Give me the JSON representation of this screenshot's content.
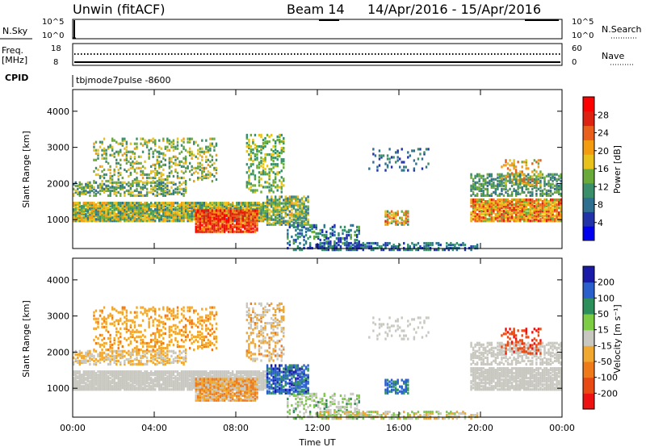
{
  "header": {
    "station": "Unwin (fitACF)",
    "beam": "Beam 14",
    "dates": "14/Apr/2016 - 15/Apr/2016"
  },
  "nsky_panel": {
    "label": "N.Sky",
    "left_ticks": [
      "10^5",
      "10^0"
    ],
    "right_ticks": [
      "10^5",
      "10^0"
    ],
    "right_label": "N.Search"
  },
  "freq_panel": {
    "label_line1": "Freq.",
    "label_line2": "[MHz]",
    "left_ticks": [
      "18",
      "8"
    ],
    "right_ticks": [
      "60",
      "0"
    ],
    "right_label": "Nave"
  },
  "cpid": {
    "label": "CPID",
    "value": "tbjmode7pulse -8600"
  },
  "colors": {
    "frame": "#000000",
    "background": "#ffffff"
  },
  "chart_data": [
    {
      "type": "heatmap",
      "name": "power",
      "ylabel": "Slant Range [km]",
      "xlabel": "",
      "xlim": [
        0,
        24
      ],
      "ylim": [
        200,
        4600
      ],
      "x_ticks": [
        0,
        4,
        8,
        12,
        16,
        20,
        24
      ],
      "y_ticks": [
        1000,
        2000,
        3000,
        4000
      ],
      "colorbar": {
        "label": "Power [dB]",
        "ticks": [
          4,
          8,
          12,
          16,
          20,
          24,
          28
        ],
        "range": [
          0,
          32
        ],
        "colors": [
          "#0000ee",
          "#2233aa",
          "#2f6f8f",
          "#3a8f6a",
          "#6aaa3a",
          "#e8c21a",
          "#f39c12",
          "#e8601c",
          "#dd2211",
          "#ff0000"
        ]
      }
    },
    {
      "type": "heatmap",
      "name": "velocity",
      "ylabel": "Slant Range [km]",
      "xlabel": "Time UT",
      "xlim": [
        0,
        24
      ],
      "ylim": [
        200,
        4600
      ],
      "x_tick_labels": [
        "00:00",
        "04:00",
        "08:00",
        "12:00",
        "16:00",
        "20:00",
        "00:00"
      ],
      "y_ticks": [
        1000,
        2000,
        3000,
        4000
      ],
      "colorbar": {
        "label": "Velocity [m s⁻¹]",
        "ticks": [
          200,
          100,
          50,
          15,
          -15,
          -50,
          -100,
          -200
        ],
        "colors": [
          "#1a1aa8",
          "#2a5fcc",
          "#2d8f5a",
          "#7ccc44",
          "#c8c8c0",
          "#f0a830",
          "#ee7a1a",
          "#e84a14",
          "#ee1111"
        ]
      }
    }
  ]
}
